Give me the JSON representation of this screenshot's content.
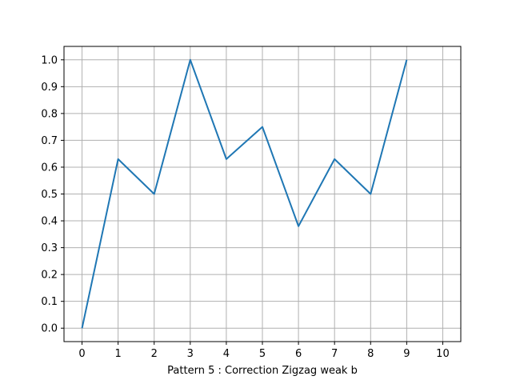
{
  "chart_data": {
    "type": "line",
    "title": "",
    "xlabel": "Pattern 5 : Correction Zigzag weak b",
    "ylabel": "",
    "x": [
      0,
      1,
      2,
      3,
      4,
      5,
      6,
      7,
      8,
      9
    ],
    "series": [
      {
        "values": [
          0.0,
          0.63,
          0.5,
          1.0,
          0.63,
          0.75,
          0.38,
          0.63,
          0.5,
          1.0
        ]
      }
    ],
    "xlim": [
      -0.5,
      10.5
    ],
    "ylim": [
      -0.05,
      1.05
    ],
    "xticks": [
      "0",
      "1",
      "2",
      "3",
      "4",
      "5",
      "6",
      "7",
      "8",
      "9",
      "10"
    ],
    "yticks": [
      "0.0",
      "0.1",
      "0.2",
      "0.3",
      "0.4",
      "0.5",
      "0.6",
      "0.7",
      "0.8",
      "0.9",
      "1.0"
    ],
    "grid": true,
    "legend": "none",
    "colors": {
      "line": "#1f77b4",
      "grid": "#b0b0b0",
      "axes": "#000000"
    }
  }
}
